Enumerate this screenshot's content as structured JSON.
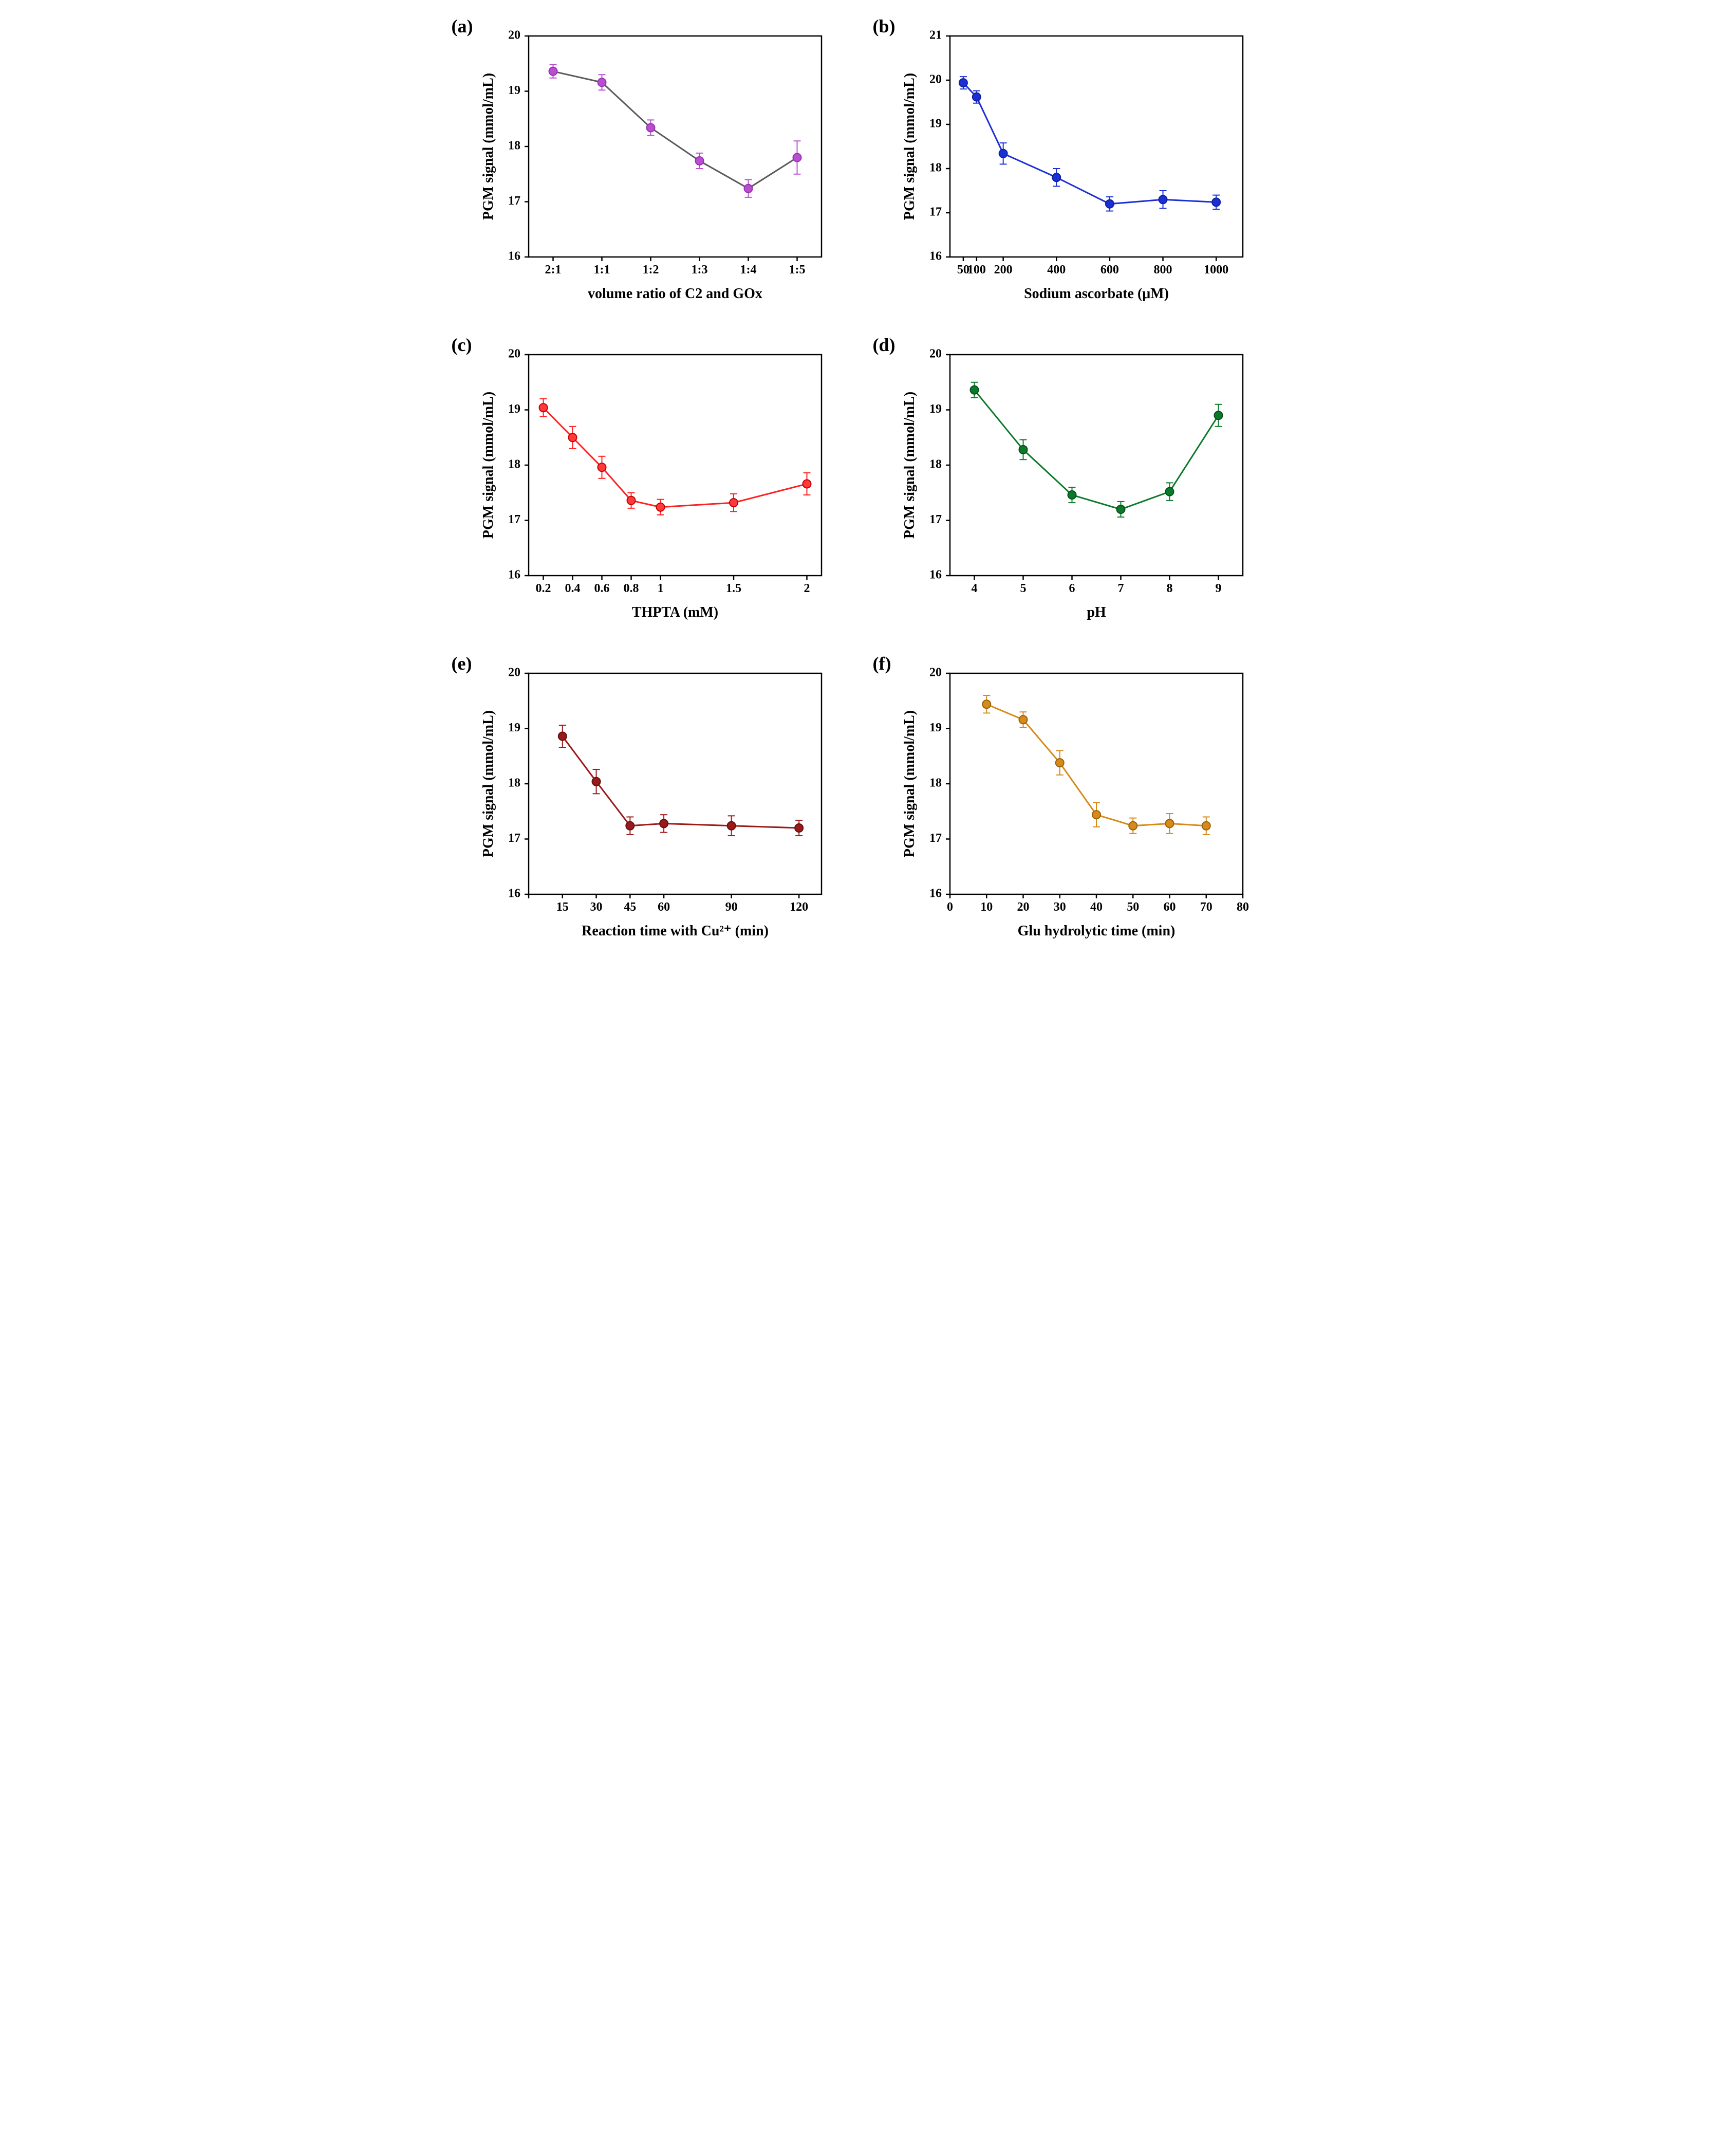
{
  "global": {
    "background_color": "#ffffff",
    "axis_color": "#000000",
    "axis_linewidth": 2.5,
    "tick_length": 8,
    "tick_width": 2.5,
    "font_family": "Times New Roman",
    "axis_label_fontsize": 28,
    "tick_label_fontsize": 24,
    "panel_label_fontsize": 36,
    "marker_radius": 8,
    "marker_border_width": 2,
    "line_width": 3,
    "errorbar_width": 2,
    "errorbar_cap": 7
  },
  "panels": [
    {
      "id": "a",
      "label": "(a)",
      "xlabel": "volume ratio of C2 and GOx",
      "ylabel": "PGM signal (mmol/mL)",
      "x_type": "categorical",
      "x_categories": [
        "2:1",
        "1:1",
        "1:2",
        "1:3",
        "1:4",
        "1:5"
      ],
      "ylim": [
        16,
        20
      ],
      "yticks": [
        16,
        17,
        18,
        19,
        20
      ],
      "line_color": "#5a5a5a",
      "marker_fill": "#b84fd1",
      "marker_stroke": "#9a2fb6",
      "errorbar_color": "#b84fd1",
      "data": [
        {
          "x": "2:1",
          "y": 19.36,
          "err": 0.12
        },
        {
          "x": "1:1",
          "y": 19.16,
          "err": 0.14
        },
        {
          "x": "1:2",
          "y": 18.34,
          "err": 0.14
        },
        {
          "x": "1:3",
          "y": 17.74,
          "err": 0.14
        },
        {
          "x": "1:4",
          "y": 17.24,
          "err": 0.16
        },
        {
          "x": "1:5",
          "y": 17.8,
          "err": 0.3
        }
      ]
    },
    {
      "id": "b",
      "label": "(b)",
      "xlabel": "Sodium ascorbate (μM)",
      "ylabel": "PGM signal (mmol/mL)",
      "x_type": "linear",
      "xlim": [
        0,
        1100
      ],
      "xticks": [
        50,
        100,
        200,
        400,
        600,
        800,
        1000
      ],
      "ylim": [
        16,
        21
      ],
      "yticks": [
        16,
        17,
        18,
        19,
        20,
        21
      ],
      "line_color": "#1a2fd6",
      "marker_fill": "#1a2fd6",
      "marker_stroke": "#101f9a",
      "errorbar_color": "#1a2fd6",
      "data": [
        {
          "x": 50,
          "y": 19.94,
          "err": 0.14
        },
        {
          "x": 100,
          "y": 19.62,
          "err": 0.14
        },
        {
          "x": 200,
          "y": 18.34,
          "err": 0.24
        },
        {
          "x": 400,
          "y": 17.8,
          "err": 0.2
        },
        {
          "x": 600,
          "y": 17.2,
          "err": 0.16
        },
        {
          "x": 800,
          "y": 17.3,
          "err": 0.2
        },
        {
          "x": 1000,
          "y": 17.24,
          "err": 0.16
        }
      ]
    },
    {
      "id": "c",
      "label": "(c)",
      "xlabel": "THPTA (mM)",
      "ylabel": "PGM signal (mmol/mL)",
      "x_type": "linear",
      "xlim": [
        0.1,
        2.1
      ],
      "xticks": [
        0.2,
        0.4,
        0.6,
        0.8,
        1.0,
        1.5,
        2.0
      ],
      "ylim": [
        16,
        20
      ],
      "yticks": [
        16,
        17,
        18,
        19,
        20
      ],
      "line_color": "#ff1f1f",
      "marker_fill": "#ff3a3a",
      "marker_stroke": "#c70000",
      "errorbar_color": "#ff1f1f",
      "data": [
        {
          "x": 0.2,
          "y": 19.04,
          "err": 0.16
        },
        {
          "x": 0.4,
          "y": 18.5,
          "err": 0.2
        },
        {
          "x": 0.6,
          "y": 17.96,
          "err": 0.2
        },
        {
          "x": 0.8,
          "y": 17.36,
          "err": 0.14
        },
        {
          "x": 1.0,
          "y": 17.24,
          "err": 0.14
        },
        {
          "x": 1.5,
          "y": 17.32,
          "err": 0.16
        },
        {
          "x": 2.0,
          "y": 17.66,
          "err": 0.2
        }
      ]
    },
    {
      "id": "d",
      "label": "(d)",
      "xlabel": "pH",
      "ylabel": "PGM signal (mmol/mL)",
      "x_type": "linear",
      "xlim": [
        3.5,
        9.5
      ],
      "xticks": [
        4,
        5,
        6,
        7,
        8,
        9
      ],
      "ylim": [
        16,
        20
      ],
      "yticks": [
        16,
        17,
        18,
        19,
        20
      ],
      "line_color": "#0a7a2a",
      "marker_fill": "#0a7a2a",
      "marker_stroke": "#054f1a",
      "errorbar_color": "#0a7a2a",
      "data": [
        {
          "x": 4,
          "y": 19.36,
          "err": 0.14
        },
        {
          "x": 5,
          "y": 18.28,
          "err": 0.18
        },
        {
          "x": 6,
          "y": 17.46,
          "err": 0.14
        },
        {
          "x": 7,
          "y": 17.2,
          "err": 0.14
        },
        {
          "x": 8,
          "y": 17.52,
          "err": 0.16
        },
        {
          "x": 9,
          "y": 18.9,
          "err": 0.2
        }
      ]
    },
    {
      "id": "e",
      "label": "(e)",
      "xlabel": "Reaction time with Cu²⁺ (min)",
      "ylabel": "PGM signal (mmol/mL)",
      "x_type": "linear",
      "xlim": [
        0,
        130
      ],
      "xticks": [
        0,
        15,
        30,
        45,
        60,
        90,
        120
      ],
      "xtick_skip_first_label": true,
      "ylim": [
        16,
        20
      ],
      "yticks": [
        16,
        17,
        18,
        19,
        20
      ],
      "line_color": "#9a1a1a",
      "marker_fill": "#9a1a1a",
      "marker_stroke": "#5f0f0f",
      "errorbar_color": "#9a1a1a",
      "data": [
        {
          "x": 15,
          "y": 18.86,
          "err": 0.2
        },
        {
          "x": 30,
          "y": 18.04,
          "err": 0.22
        },
        {
          "x": 45,
          "y": 17.24,
          "err": 0.16
        },
        {
          "x": 60,
          "y": 17.28,
          "err": 0.16
        },
        {
          "x": 90,
          "y": 17.24,
          "err": 0.18
        },
        {
          "x": 120,
          "y": 17.2,
          "err": 0.14
        }
      ]
    },
    {
      "id": "f",
      "label": "(f)",
      "xlabel": "Glu hydrolytic time (min)",
      "ylabel": "PGM signal (mmol/mL)",
      "x_type": "linear",
      "xlim": [
        0,
        80
      ],
      "xticks": [
        0,
        10,
        20,
        30,
        40,
        50,
        60,
        70,
        80
      ],
      "ylim": [
        16,
        20
      ],
      "yticks": [
        16,
        17,
        18,
        19,
        20
      ],
      "line_color": "#d68a1a",
      "marker_fill": "#d68a1a",
      "marker_stroke": "#9a5f0a",
      "errorbar_color": "#d68a1a",
      "data": [
        {
          "x": 10,
          "y": 19.44,
          "err": 0.16
        },
        {
          "x": 20,
          "y": 19.16,
          "err": 0.14
        },
        {
          "x": 30,
          "y": 18.38,
          "err": 0.22
        },
        {
          "x": 40,
          "y": 17.44,
          "err": 0.22
        },
        {
          "x": 50,
          "y": 17.24,
          "err": 0.14
        },
        {
          "x": 60,
          "y": 17.28,
          "err": 0.18
        },
        {
          "x": 70,
          "y": 17.24,
          "err": 0.16
        }
      ]
    }
  ]
}
